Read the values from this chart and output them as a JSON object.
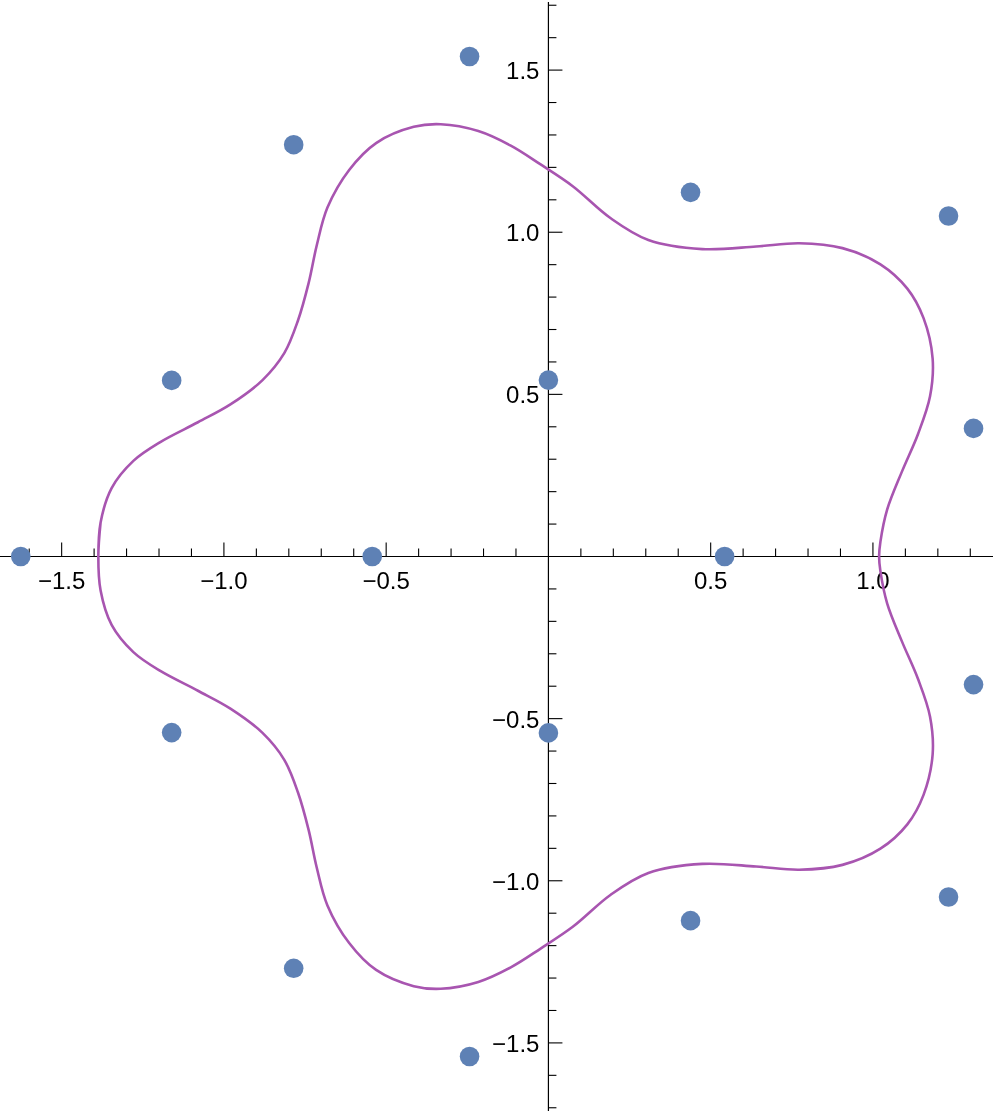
{
  "chart_data": {
    "type": "scatter",
    "marker": "circle",
    "xlim": [
      -1.69,
      1.37
    ],
    "ylim": [
      -1.71,
      1.71
    ],
    "xticks": [
      {
        "value": -1.6,
        "label": null
      },
      {
        "value": -1.5,
        "label": "−1.5"
      },
      {
        "value": -1.4,
        "label": null
      },
      {
        "value": -1.3,
        "label": null
      },
      {
        "value": -1.2,
        "label": null
      },
      {
        "value": -1.1,
        "label": null
      },
      {
        "value": -1,
        "label": "−1.0"
      },
      {
        "value": -0.9,
        "label": null
      },
      {
        "value": -0.8,
        "label": null
      },
      {
        "value": -0.7,
        "label": null
      },
      {
        "value": -0.6,
        "label": null
      },
      {
        "value": -0.5,
        "label": "−0.5"
      },
      {
        "value": -0.4,
        "label": null
      },
      {
        "value": -0.3,
        "label": null
      },
      {
        "value": -0.2,
        "label": null
      },
      {
        "value": -0.1,
        "label": null
      },
      {
        "value": 0.1,
        "label": null
      },
      {
        "value": 0.2,
        "label": null
      },
      {
        "value": 0.3,
        "label": null
      },
      {
        "value": 0.4,
        "label": null
      },
      0.5,
      {
        "value": 0.6,
        "label": null
      },
      {
        "value": 0.7,
        "label": null
      },
      {
        "value": 0.8,
        "label": null
      },
      {
        "value": 0.9,
        "label": null
      },
      {
        "value": 1,
        "label": "1.0"
      },
      {
        "value": 1.1,
        "label": null
      },
      {
        "value": 1.2,
        "label": null
      },
      {
        "value": 1.3,
        "label": null
      }
    ],
    "yticks": [
      {
        "value": -1.7,
        "label": null
      },
      {
        "value": -1.6,
        "label": null
      },
      {
        "value": -1.5,
        "label": "−1.5"
      },
      {
        "value": -1.4,
        "label": null
      },
      {
        "value": -1.3,
        "label": null
      },
      {
        "value": -1.2,
        "label": null
      },
      {
        "value": -1.1,
        "label": null
      },
      {
        "value": -1,
        "label": "−1.0"
      },
      {
        "value": -0.9,
        "label": null
      },
      {
        "value": -0.8,
        "label": null
      },
      {
        "value": -0.7,
        "label": null
      },
      {
        "value": -0.6,
        "label": null
      },
      {
        "value": -0.5,
        "label": "−0.5"
      },
      {
        "value": -0.4,
        "label": null
      },
      {
        "value": -0.3,
        "label": null
      },
      {
        "value": -0.2,
        "label": null
      },
      {
        "value": -0.1,
        "label": null
      },
      {
        "value": 0.1,
        "label": null
      },
      {
        "value": 0.2,
        "label": null
      },
      {
        "value": 0.3,
        "label": null
      },
      {
        "value": 0.4,
        "label": null
      },
      0.5,
      {
        "value": 0.6,
        "label": null
      },
      {
        "value": 0.7,
        "label": null
      },
      {
        "value": 0.8,
        "label": null
      },
      {
        "value": 0.9,
        "label": null
      },
      {
        "value": 1,
        "label": "1.0"
      },
      {
        "value": 1.1,
        "label": null
      },
      {
        "value": 1.2,
        "label": null
      },
      {
        "value": 1.3,
        "label": null
      },
      {
        "value": 1.4,
        "label": null
      },
      1.5,
      {
        "value": 1.6,
        "label": null
      },
      {
        "value": 1.7,
        "label": null
      }
    ],
    "series": [
      {
        "type": "line",
        "color": "#a855b0",
        "marker": "none",
        "x": [
          -1.387,
          -1.38,
          -1.346,
          -1.279,
          -1.196,
          -1.08,
          -0.98,
          -0.881,
          -0.814,
          -0.772,
          -0.739,
          -0.714,
          -0.681,
          -0.614,
          -0.531,
          -0.415,
          -0.332,
          -0.216,
          -0.116,
          -0.024,
          0.075,
          0.192,
          0.308,
          0.474,
          0.64,
          0.773,
          0.906,
          1.023,
          1.106,
          1.156,
          1.184,
          1.176,
          1.139,
          1.089,
          1.044,
          1.023,
          1.019,
          1.023,
          1.044,
          1.089,
          1.139,
          1.176,
          1.184,
          1.156,
          1.106,
          1.023,
          0.906,
          0.773,
          0.64,
          0.474,
          0.308,
          0.192,
          0.075,
          -0.024,
          -0.116,
          -0.216,
          -0.332,
          -0.415,
          -0.531,
          -0.614,
          -0.681,
          -0.714,
          -0.739,
          -0.772,
          -0.814,
          -0.881,
          -0.98,
          -1.08,
          -1.196,
          -1.279,
          -1.346,
          -1.38,
          -1.387,
          -1.38
        ],
        "values": [
          0,
          0.105,
          0.211,
          0.295,
          0.353,
          0.414,
          0.469,
          0.544,
          0.627,
          0.727,
          0.843,
          0.959,
          1.076,
          1.192,
          1.275,
          1.325,
          1.333,
          1.312,
          1.267,
          1.209,
          1.142,
          1.043,
          0.976,
          0.948,
          0.956,
          0.966,
          0.951,
          0.901,
          0.826,
          0.735,
          0.61,
          0.494,
          0.378,
          0.261,
          0.145,
          0.045,
          0,
          -0.045,
          -0.145,
          -0.261,
          -0.378,
          -0.494,
          -0.61,
          -0.735,
          -0.826,
          -0.901,
          -0.951,
          -0.966,
          -0.956,
          -0.948,
          -0.976,
          -1.043,
          -1.142,
          -1.209,
          -1.267,
          -1.312,
          -1.333,
          -1.325,
          -1.275,
          -1.192,
          -1.076,
          -0.959,
          -0.843,
          -0.727,
          -0.627,
          -0.544,
          -0.469,
          -0.414,
          -0.353,
          -0.295,
          -0.211,
          -0.105,
          0,
          0.105
        ]
      },
      {
        "color": "#5e81b5",
        "x": [
          -1.626,
          -1.161,
          -1.161,
          -0.785,
          -0.785,
          -0.243,
          -0.243,
          -0.543,
          0,
          0,
          0.438,
          0.438,
          0.543,
          1.233,
          1.233,
          1.31,
          1.31
        ],
        "values": [
          0,
          0.543,
          -0.543,
          1.27,
          -1.27,
          1.542,
          -1.542,
          0,
          0.544,
          -0.544,
          1.123,
          -1.123,
          0,
          1.05,
          -1.05,
          0.395,
          -0.395
        ]
      }
    ]
  }
}
